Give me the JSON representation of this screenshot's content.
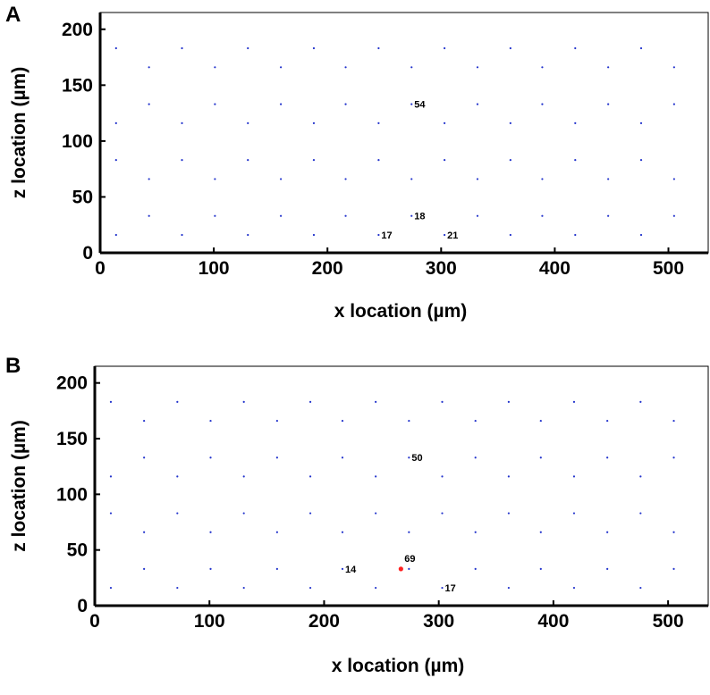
{
  "panels": [
    {
      "letter": "A",
      "chart_data": {
        "type": "scatter",
        "title": "",
        "xlabel": "x location (µm)",
        "ylabel": "z location (µm)",
        "xlim": [
          0,
          535
        ],
        "ylim": [
          0,
          215
        ],
        "xticks": [
          0,
          100,
          200,
          300,
          400,
          500
        ],
        "yticks": [
          0,
          50,
          100,
          150,
          200
        ],
        "grid": false,
        "legend": "none",
        "lattice": {
          "row_z": [
            16,
            33,
            66,
            83,
            116,
            133,
            166,
            183
          ],
          "offset_rows_x": [
            14,
            72,
            130,
            188,
            245,
            303,
            361,
            418,
            476
          ],
          "shifted_rows_x": [
            43,
            101,
            159,
            216,
            274,
            332,
            389,
            447,
            505
          ],
          "offset_row_z": [
            16,
            83,
            116,
            183
          ],
          "shifted_row_z": [
            33,
            66,
            133,
            166
          ],
          "color": "#2233cc"
        },
        "annotations": [
          {
            "text": "54",
            "x": 274,
            "z": 133
          },
          {
            "text": "18",
            "x": 274,
            "z": 33
          },
          {
            "text": "17",
            "x": 245,
            "z": 16
          },
          {
            "text": "21",
            "x": 303,
            "z": 16
          }
        ],
        "highlight_points": []
      }
    },
    {
      "letter": "B",
      "chart_data": {
        "type": "scatter",
        "title": "",
        "xlabel": "x location (µm)",
        "ylabel": "z location (µm)",
        "xlim": [
          0,
          535
        ],
        "ylim": [
          0,
          215
        ],
        "xticks": [
          0,
          100,
          200,
          300,
          400,
          500
        ],
        "yticks": [
          0,
          50,
          100,
          150,
          200
        ],
        "grid": false,
        "legend": "none",
        "lattice": {
          "row_z": [
            16,
            33,
            66,
            83,
            116,
            133,
            166,
            183
          ],
          "offset_rows_x": [
            14,
            72,
            130,
            188,
            245,
            303,
            361,
            418,
            476
          ],
          "shifted_rows_x": [
            43,
            101,
            159,
            216,
            274,
            332,
            389,
            447,
            505
          ],
          "offset_row_z": [
            16,
            83,
            116,
            183
          ],
          "shifted_row_z": [
            33,
            66,
            133,
            166
          ],
          "color": "#2233cc"
        },
        "annotations": [
          {
            "text": "50",
            "x": 274,
            "z": 133
          },
          {
            "text": "14",
            "x": 216,
            "z": 33
          },
          {
            "text": "17",
            "x": 303,
            "z": 16
          },
          {
            "text": "69",
            "x": 267,
            "z": 33,
            "position": "above"
          }
        ],
        "highlight_points": [
          {
            "x": 267,
            "z": 33,
            "color": "#ff2222"
          }
        ]
      }
    }
  ]
}
